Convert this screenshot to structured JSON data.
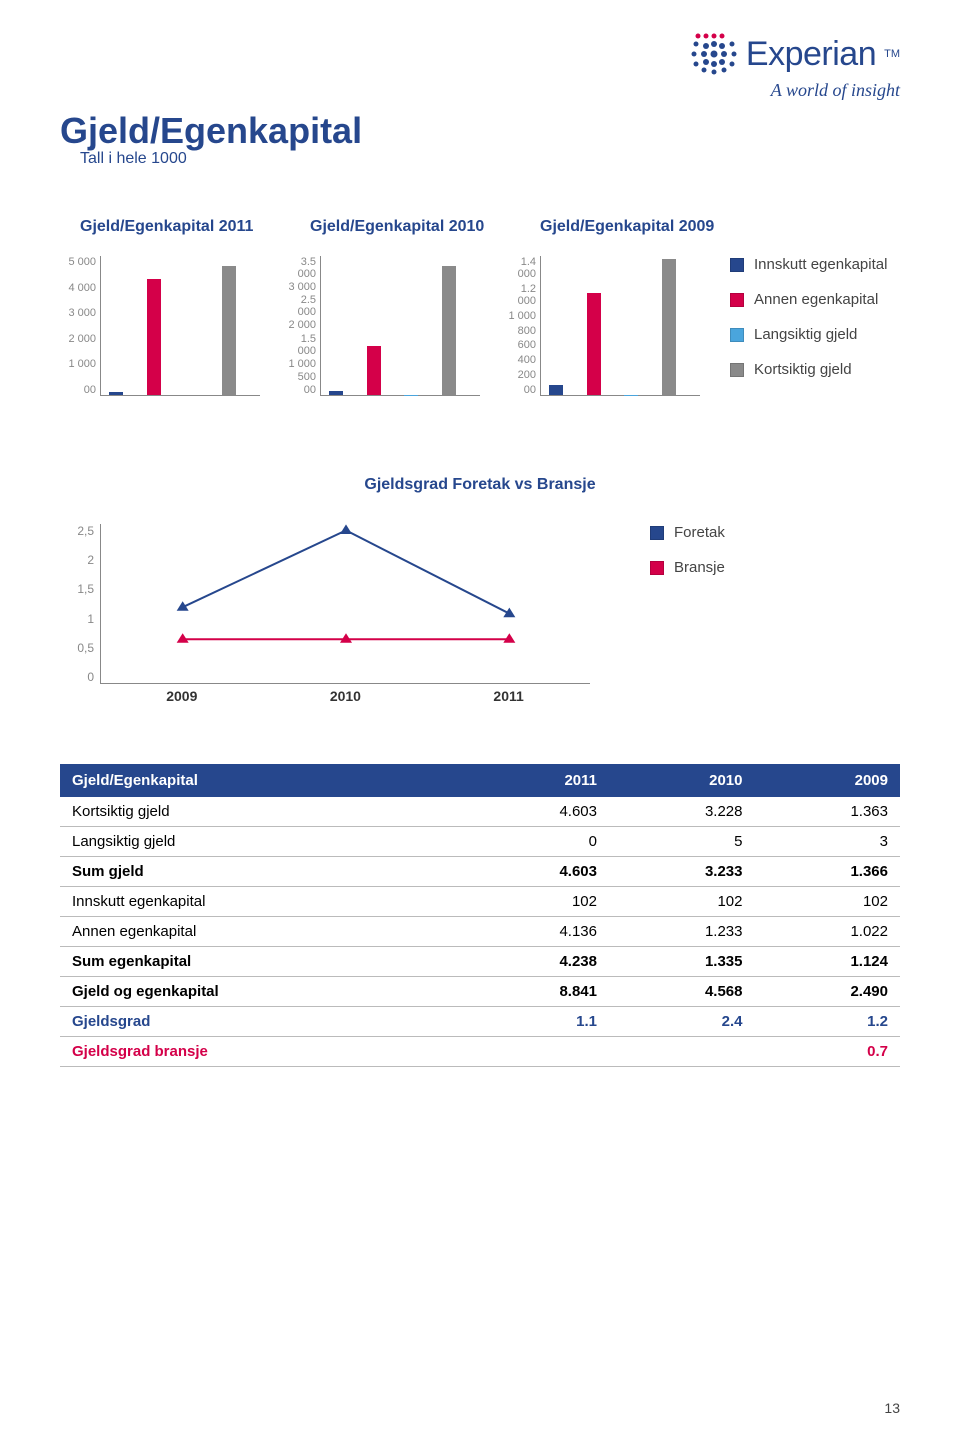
{
  "brand": {
    "name": "Experian",
    "tagline": "A world of insight",
    "logo_dot_color": "#26478d",
    "logo_accent_dots": "#d40049"
  },
  "page": {
    "title": "Gjeld/Egenkapital",
    "subtitle": "Tall i hele 1000",
    "number": "13"
  },
  "legend_colors": {
    "innskutt": "#26478d",
    "annen": "#d40049",
    "langsiktig": "#4aa5dd",
    "kortsiktig": "#8a8a8a"
  },
  "legend_labels": {
    "innskutt": "Innskutt egenkapital",
    "annen": "Annen egenkapital",
    "langsiktig": "Langsiktig gjeld",
    "kortsiktig": "Kortsiktig gjeld"
  },
  "bar_charts": [
    {
      "title": "Gjeld/Egenkapital 2011",
      "ymax": 5000,
      "ystep": 1000,
      "bars": [
        {
          "label": "Innskutt",
          "value": 102,
          "color": "#26478d"
        },
        {
          "label": "Annen",
          "value": 4136,
          "color": "#d40049"
        },
        {
          "label": "Langsiktig",
          "value": 0,
          "color": "#4aa5dd"
        },
        {
          "label": "Kortsiktig",
          "value": 4603,
          "color": "#8a8a8a"
        }
      ]
    },
    {
      "title": "Gjeld/Egenkapital 2010",
      "ymax": 3500,
      "ystep": 500,
      "bars": [
        {
          "label": "Innskutt",
          "value": 102,
          "color": "#26478d"
        },
        {
          "label": "Annen",
          "value": 1233,
          "color": "#d40049"
        },
        {
          "label": "Langsiktig",
          "value": 5,
          "color": "#4aa5dd"
        },
        {
          "label": "Kortsiktig",
          "value": 3228,
          "color": "#8a8a8a"
        }
      ]
    },
    {
      "title": "Gjeld/Egenkapital 2009",
      "ymax": 1400,
      "ystep": 200,
      "bars": [
        {
          "label": "Innskutt",
          "value": 102,
          "color": "#26478d"
        },
        {
          "label": "Annen",
          "value": 1022,
          "color": "#d40049"
        },
        {
          "label": "Langsiktig",
          "value": 3,
          "color": "#4aa5dd"
        },
        {
          "label": "Kortsiktig",
          "value": 1363,
          "color": "#8a8a8a"
        }
      ]
    }
  ],
  "line_chart": {
    "title": "Gjeldsgrad Foretak vs Bransje",
    "ymax": 2.5,
    "ystep": 0.5,
    "x_labels": [
      "2009",
      "2010",
      "2011"
    ],
    "series": [
      {
        "name": "Foretak",
        "color": "#26478d",
        "marker": "triangle",
        "values": [
          1.2,
          2.4,
          1.1
        ]
      },
      {
        "name": "Bransje",
        "color": "#d40049",
        "marker": "triangle",
        "values": [
          0.7,
          0.7,
          0.7
        ]
      }
    ],
    "legend": {
      "foretak": "Foretak",
      "bransje": "Bransje"
    }
  },
  "table": {
    "headers": [
      "Gjeld/Egenkapital",
      "2011",
      "2010",
      "2009"
    ],
    "rows": [
      {
        "style": "",
        "cells": [
          "Kortsiktig gjeld",
          "4.603",
          "3.228",
          "1.363"
        ]
      },
      {
        "style": "",
        "cells": [
          "Langsiktig gjeld",
          "0",
          "5",
          "3"
        ]
      },
      {
        "style": "bold",
        "cells": [
          "Sum gjeld",
          "4.603",
          "3.233",
          "1.366"
        ]
      },
      {
        "style": "",
        "cells": [
          "Innskutt egenkapital",
          "102",
          "102",
          "102"
        ]
      },
      {
        "style": "",
        "cells": [
          "Annen egenkapital",
          "4.136",
          "1.233",
          "1.022"
        ]
      },
      {
        "style": "bold",
        "cells": [
          "Sum egenkapital",
          "4.238",
          "1.335",
          "1.124"
        ]
      },
      {
        "style": "bold",
        "cells": [
          "Gjeld og egenkapital",
          "8.841",
          "4.568",
          "2.490"
        ]
      },
      {
        "style": "blue",
        "cells": [
          "Gjeldsgrad",
          "1.1",
          "2.4",
          "1.2"
        ]
      },
      {
        "style": "red",
        "cells": [
          "Gjeldsgrad bransje",
          "",
          "",
          "0.7"
        ]
      }
    ]
  }
}
